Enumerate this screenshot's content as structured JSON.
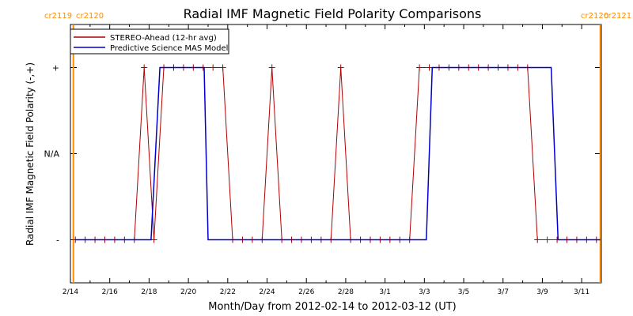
{
  "chart_data": {
    "type": "line",
    "title": "Radial IMF Magnetic Field Polarity Comparisons",
    "xlabel": "Month/Day from 2012-02-14 to 2012-03-12 (UT)",
    "ylabel": "Radial IMF Magnetic Field Polarity (-,+)",
    "x_unit": "days since 2012-02-14 00:00 UT",
    "xlim": [
      0,
      27
    ],
    "ylim": [
      -1.5,
      1.5
    ],
    "y_ticks": [
      {
        "value": 1,
        "label": "+"
      },
      {
        "value": 0,
        "label": "N/A"
      },
      {
        "value": -1,
        "label": "-"
      }
    ],
    "x_ticks": [
      {
        "value": 0,
        "label": "2/14"
      },
      {
        "value": 2,
        "label": "2/16"
      },
      {
        "value": 4,
        "label": "2/18"
      },
      {
        "value": 6,
        "label": "2/20"
      },
      {
        "value": 8,
        "label": "2/22"
      },
      {
        "value": 10,
        "label": "2/24"
      },
      {
        "value": 12,
        "label": "2/26"
      },
      {
        "value": 14,
        "label": "2/28"
      },
      {
        "value": 16,
        "label": "3/1"
      },
      {
        "value": 18,
        "label": "3/3"
      },
      {
        "value": 20,
        "label": "3/5"
      },
      {
        "value": 22,
        "label": "3/7"
      },
      {
        "value": 24,
        "label": "3/9"
      },
      {
        "value": 26,
        "label": "3/11"
      }
    ],
    "rotation_markers": [
      {
        "value": 0.15,
        "labels": [
          "cr2119",
          "cr2120"
        ],
        "side": "left"
      },
      {
        "value": 26.95,
        "labels": [
          "cr2120",
          "cr2121"
        ],
        "side": "right"
      }
    ],
    "legend": {
      "position": "top-left"
    },
    "series": [
      {
        "name": "STEREO-Ahead (12-hr avg)",
        "color": "#b00000",
        "style": "line-with-markers",
        "x": [
          0.25,
          0.75,
          1.25,
          1.75,
          2.25,
          2.75,
          3.25,
          3.75,
          4.25,
          4.75,
          5.25,
          5.75,
          6.25,
          6.75,
          7.25,
          7.75,
          8.25,
          8.75,
          9.25,
          9.75,
          10.25,
          10.75,
          11.25,
          11.75,
          12.25,
          12.75,
          13.25,
          13.75,
          14.25,
          14.75,
          15.25,
          15.75,
          16.25,
          16.75,
          17.25,
          17.75,
          18.25,
          18.75,
          19.25,
          19.75,
          20.25,
          20.75,
          21.25,
          21.75,
          22.25,
          22.75,
          23.25,
          23.75,
          24.25,
          24.75,
          25.25,
          25.75,
          26.25,
          26.75
        ],
        "values": [
          -1,
          -1,
          -1,
          -1,
          -1,
          -1,
          -1,
          1,
          -1,
          1,
          1,
          1,
          1,
          1,
          1,
          1,
          -1,
          -1,
          -1,
          -1,
          1,
          -1,
          -1,
          -1,
          -1,
          -1,
          -1,
          1,
          -1,
          -1,
          -1,
          -1,
          -1,
          -1,
          -1,
          1,
          1,
          1,
          1,
          1,
          1,
          1,
          1,
          1,
          1,
          1,
          1,
          -1,
          -1,
          -1,
          -1,
          -1,
          -1,
          -1
        ]
      },
      {
        "name": "Predictive Science MAS Model",
        "color": "#0000cc",
        "style": "step",
        "steps": [
          {
            "x": 0.25,
            "y": -1
          },
          {
            "x": 4.1,
            "y": -1
          },
          {
            "x": 4.55,
            "y": 1
          },
          {
            "x": 6.8,
            "y": 1
          },
          {
            "x": 7.0,
            "y": -1
          },
          {
            "x": 18.1,
            "y": -1
          },
          {
            "x": 18.4,
            "y": 1
          },
          {
            "x": 24.45,
            "y": 1
          },
          {
            "x": 24.8,
            "y": -1
          },
          {
            "x": 26.95,
            "y": -1
          }
        ]
      }
    ]
  }
}
